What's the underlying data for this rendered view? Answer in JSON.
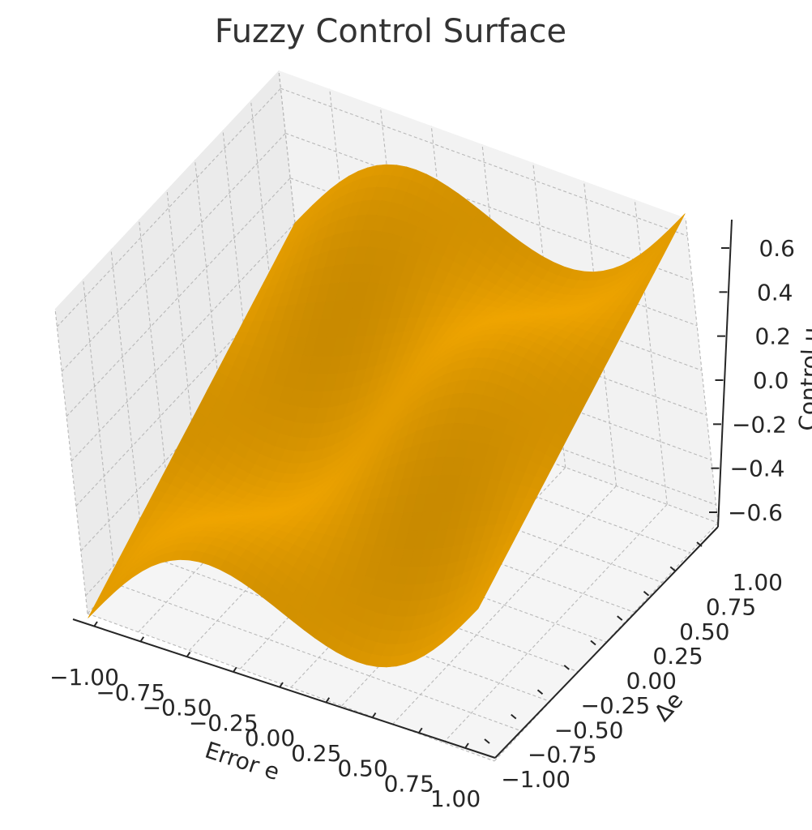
{
  "chart_data": {
    "type": "surface",
    "title": "Fuzzy Control Surface",
    "xlabel": "Error e",
    "ylabel": "Δe",
    "zlabel": "Control u",
    "x_ticks": [
      "−1.00",
      "−0.75",
      "−0.50",
      "−0.25",
      "0.00",
      "0.25",
      "0.50",
      "0.75",
      "1.00"
    ],
    "x_tick_values": [
      -1,
      -0.75,
      -0.5,
      -0.25,
      0,
      0.25,
      0.5,
      0.75,
      1
    ],
    "y_ticks": [
      "−1.00",
      "−0.75",
      "−0.50",
      "−0.25",
      "0.00",
      "0.25",
      "0.50",
      "0.75",
      "1.00"
    ],
    "y_tick_values": [
      -1,
      -0.75,
      -0.5,
      -0.25,
      0,
      0.25,
      0.5,
      0.75,
      1
    ],
    "z_ticks": [
      "−0.6",
      "−0.4",
      "−0.2",
      "0.0",
      "0.2",
      "0.4",
      "0.6"
    ],
    "z_tick_values": [
      -0.6,
      -0.4,
      -0.2,
      0,
      0.2,
      0.4,
      0.6
    ],
    "xlim": [
      -1,
      1
    ],
    "ylim": [
      -1,
      1
    ],
    "zlim": [
      -0.68,
      0.68
    ],
    "grid": true,
    "surface_color": "#f0a500",
    "surface_function": "u ≈ 0.35·(e + Δe) + 0.25·sin(π·e)·cos(π·Δe), clipped to ±0.7",
    "grid_resolution": 40
  }
}
